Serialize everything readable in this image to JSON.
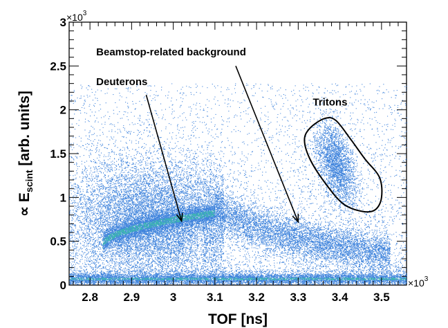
{
  "chart_data": {
    "type": "scatter",
    "title": "",
    "xlabel": "TOF [ns]",
    "ylabel_prefix": "∝ E",
    "ylabel_sub": "scint",
    "ylabel_suffix": " [arb. units]",
    "x_multiplier": "×10",
    "x_multiplier_exp": "3",
    "y_multiplier": "×10",
    "y_multiplier_exp": "3",
    "xlim": [
      2.75,
      3.56
    ],
    "ylim": [
      0,
      3
    ],
    "x_ticks": [
      2.8,
      2.9,
      3.0,
      3.1,
      3.2,
      3.3,
      3.4,
      3.5
    ],
    "x_tick_labels": [
      "2.8",
      "2.9",
      "3",
      "3.1",
      "3.2",
      "3.3",
      "3.4",
      "3.5"
    ],
    "y_ticks": [
      0,
      0.5,
      1.0,
      1.5,
      2.0,
      2.5,
      3.0
    ],
    "y_tick_labels": [
      "0",
      "0.5",
      "1",
      "1.5",
      "2",
      "2.5",
      "3"
    ],
    "point_color": "#1f6fd6",
    "dense_color": "#3cc8a0",
    "grid": false,
    "regions": [
      {
        "name": "flat-background-band",
        "x": [
          2.75,
          3.56
        ],
        "y_center": 0.07,
        "y_spread": 0.035,
        "count": 9000
      },
      {
        "name": "deuteron-band",
        "x": [
          2.83,
          3.1
        ],
        "y_start": 0.45,
        "y_end": 0.82,
        "y_spread": 0.06,
        "count": 5000
      },
      {
        "name": "broad-low-tof-cloud",
        "x_center": 2.95,
        "x_spread": 0.09,
        "y_center": 0.75,
        "y_spread": 0.35,
        "count": 11000
      },
      {
        "name": "beamstop-band",
        "x": [
          3.1,
          3.52
        ],
        "y_start": 0.95,
        "y_end": 0.35,
        "y_spread": 0.12,
        "count": 6000
      },
      {
        "name": "triton-blob",
        "x_center": 3.39,
        "x_spread": 0.025,
        "y_center": 1.38,
        "y_spread": 0.2,
        "tilt": -5.0,
        "count": 2600
      },
      {
        "name": "sparse-background",
        "x": [
          2.75,
          3.56
        ],
        "y": [
          0.15,
          2.3
        ],
        "count": 5000
      }
    ],
    "annotations": [
      {
        "text": "Beamstop-related background",
        "x": 2.815,
        "y": 2.62,
        "arrow_from": [
          3.15,
          2.5
        ],
        "arrow_to": [
          3.3,
          0.72
        ]
      },
      {
        "text": "Deuterons",
        "x": 2.815,
        "y": 2.28,
        "arrow_from": [
          2.935,
          2.17
        ],
        "arrow_to": [
          3.02,
          0.73
        ]
      },
      {
        "text": "Tritons",
        "x": 3.335,
        "y": 2.05
      }
    ],
    "triton_cut_contour": [
      [
        3.363,
        1.9
      ],
      [
        3.39,
        1.88
      ],
      [
        3.425,
        1.67
      ],
      [
        3.46,
        1.44
      ],
      [
        3.495,
        1.23
      ],
      [
        3.5,
        1.0
      ],
      [
        3.485,
        0.86
      ],
      [
        3.455,
        0.84
      ],
      [
        3.41,
        0.92
      ],
      [
        3.37,
        1.13
      ],
      [
        3.33,
        1.42
      ],
      [
        3.315,
        1.65
      ],
      [
        3.328,
        1.79
      ],
      [
        3.363,
        1.9
      ]
    ]
  }
}
